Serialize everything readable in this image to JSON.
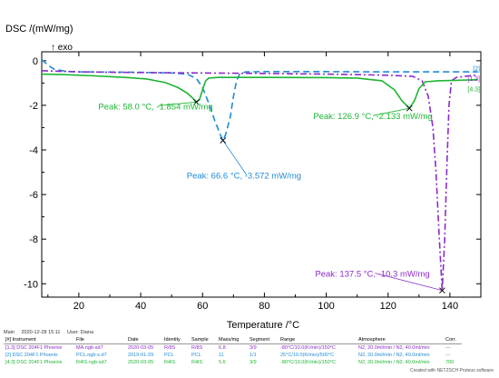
{
  "chart_data": {
    "type": "line",
    "ylabel": "DSC /(mW/mg)",
    "exo_label": "↑ exo",
    "xlabel": "Temperature /°C",
    "xlim": [
      8,
      150
    ],
    "ylim": [
      -10.6,
      0.4
    ],
    "x_ticks": [
      20,
      40,
      60,
      80,
      100,
      120,
      140
    ],
    "y_ticks": [
      0,
      -2,
      -4,
      -6,
      -8,
      -10
    ],
    "grid": false,
    "series": [
      {
        "name": "[2]",
        "color": "#1f8ad6",
        "dash": "dashed",
        "points": [
          [
            8,
            0.05
          ],
          [
            10,
            -0.2
          ],
          [
            12,
            -0.38
          ],
          [
            16,
            -0.48
          ],
          [
            20,
            -0.5
          ],
          [
            30,
            -0.51
          ],
          [
            40,
            -0.52
          ],
          [
            50,
            -0.55
          ],
          [
            55,
            -0.6
          ],
          [
            58,
            -0.8
          ],
          [
            60,
            -1.2
          ],
          [
            62,
            -1.9
          ],
          [
            64,
            -2.7
          ],
          [
            66,
            -3.4
          ],
          [
            66.6,
            -3.572
          ],
          [
            67.5,
            -3.3
          ],
          [
            69,
            -2.5
          ],
          [
            70,
            -1.6
          ],
          [
            71,
            -0.9
          ],
          [
            72,
            -0.6
          ],
          [
            74,
            -0.5
          ],
          [
            80,
            -0.49
          ],
          [
            100,
            -0.49
          ],
          [
            120,
            -0.5
          ],
          [
            140,
            -0.5
          ],
          [
            149,
            -0.5
          ]
        ]
      },
      {
        "name": "[1.3]",
        "color": "#8a2bc9",
        "dash": "dashdot",
        "points": [
          [
            8,
            -0.45
          ],
          [
            20,
            -0.5
          ],
          [
            40,
            -0.53
          ],
          [
            60,
            -0.55
          ],
          [
            80,
            -0.57
          ],
          [
            100,
            -0.6
          ],
          [
            120,
            -0.65
          ],
          [
            128,
            -0.7
          ],
          [
            131,
            -0.9
          ],
          [
            133,
            -1.6
          ],
          [
            134.5,
            -3.0
          ],
          [
            135.5,
            -5.0
          ],
          [
            136.5,
            -7.8
          ],
          [
            137.5,
            -10.3
          ],
          [
            138.3,
            -8.0
          ],
          [
            139,
            -4.8
          ],
          [
            139.7,
            -2.0
          ],
          [
            140.5,
            -0.9
          ],
          [
            142,
            -0.75
          ],
          [
            146,
            -0.68
          ],
          [
            149,
            -0.65
          ]
        ]
      },
      {
        "name": "[4.3]",
        "color": "#1db534",
        "dash": "solid",
        "points": [
          [
            8,
            -0.6
          ],
          [
            15,
            -0.62
          ],
          [
            25,
            -0.68
          ],
          [
            35,
            -0.75
          ],
          [
            42,
            -0.82
          ],
          [
            48,
            -0.98
          ],
          [
            52,
            -1.2
          ],
          [
            55,
            -1.45
          ],
          [
            57,
            -1.7
          ],
          [
            58,
            -1.854
          ],
          [
            59,
            -1.75
          ],
          [
            60,
            -1.3
          ],
          [
            61,
            -0.9
          ],
          [
            62,
            -0.78
          ],
          [
            65,
            -0.75
          ],
          [
            80,
            -0.75
          ],
          [
            100,
            -0.76
          ],
          [
            110,
            -0.78
          ],
          [
            118,
            -0.9
          ],
          [
            122,
            -1.3
          ],
          [
            124.5,
            -1.8
          ],
          [
            126.9,
            -2.133
          ],
          [
            128.5,
            -1.8
          ],
          [
            130,
            -1.25
          ],
          [
            132,
            -0.95
          ],
          [
            136,
            -0.9
          ],
          [
            142,
            -0.88
          ],
          [
            149,
            -0.85
          ]
        ]
      }
    ],
    "peaks": [
      {
        "label": "Peak: 58.0 °C, -1.854 mW/mg",
        "x": 58.0,
        "y": -1.854,
        "color": "#1db534"
      },
      {
        "label": "Peak: 66.6 °C, -3.572 mW/mg",
        "x": 66.6,
        "y": -3.572,
        "color": "#1f8ad6"
      },
      {
        "label": "Peak: 126.9 °C, -2.133 mW/mg",
        "x": 126.9,
        "y": -2.133,
        "color": "#1db534"
      },
      {
        "label": "Peak: 137.5 °C, -10.3 mW/mg",
        "x": 137.5,
        "y": -10.3,
        "color": "#8a2bc9"
      }
    ]
  },
  "meta": {
    "main": "Main",
    "datetime": "2020-12-28 15:11",
    "user": "User: Diana"
  },
  "table": {
    "headers": [
      "[#] Instrument",
      "File",
      "Date",
      "Identity",
      "Sample",
      "Mass/mg",
      "Segment",
      "Range",
      "Atmosphere",
      "Corr."
    ],
    "rows": [
      {
        "color": "#8a2bc9",
        "cells": [
          "[1.3] DSC 204F1 Phoenix",
          "MA.ngb-sd7",
          "2020-03-05",
          "R/8S",
          "R/8S",
          "6.8",
          "3/9",
          "-80°C/10.0(K/min)/150°C",
          "N2, 20.0ml/min / N2, 40.0ml/min",
          "---"
        ]
      },
      {
        "color": "#1f8ad6",
        "cells": [
          "[2] DSC 204F1 Phoenix",
          "PCL.ngb-s.d7",
          "2019-01-29",
          "PCL",
          "PCL",
          "11",
          "1/1",
          "25°C/10.0(K/min)/500°C",
          "N2, 20.0ml/min / N2, 40.0ml/min",
          "---"
        ]
      },
      {
        "color": "#1db534",
        "cells": [
          "[4.3] DSC 204F1 Phoenix",
          "R4IS.ngb-sd7",
          "2020-03-05",
          "R4IS",
          "R4IS",
          "5.6",
          "3/9",
          "-80°C/10.0(K/min)/150°C",
          "N2, 20.0ml/min / N2, 40.0ml/min",
          "700"
        ]
      }
    ]
  },
  "footer": "Created with NETZSCH Proteus software"
}
